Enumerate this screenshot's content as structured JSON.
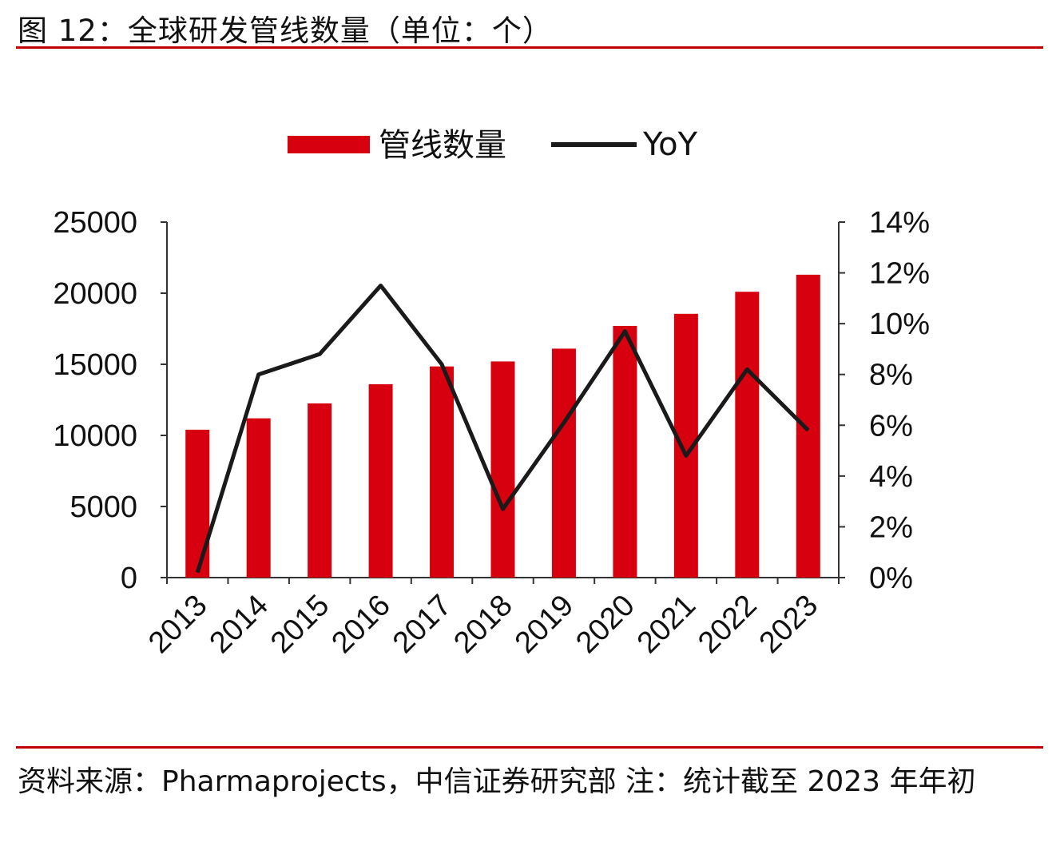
{
  "title": "图 12：全球研发管线数量（单位：个）",
  "source": "资料来源：Pharmaprojects，中信证券研究部 注：统计截至 2023 年年初",
  "colors": {
    "bar": "#d7000f",
    "line": "#1a1a1a",
    "rule": "#c00000"
  },
  "chart_data": {
    "type": "bar+line",
    "categories": [
      "2013",
      "2014",
      "2015",
      "2016",
      "2017",
      "2018",
      "2019",
      "2020",
      "2021",
      "2022",
      "2023"
    ],
    "series": [
      {
        "name": "管线数量",
        "type": "bar",
        "axis": "left",
        "values": [
          10400,
          11200,
          12250,
          13600,
          14850,
          15200,
          16100,
          17700,
          18550,
          20100,
          21300
        ]
      },
      {
        "name": "YoY",
        "type": "line",
        "axis": "right",
        "values": [
          0.2,
          8.0,
          8.8,
          11.5,
          8.4,
          2.7,
          6.1,
          9.7,
          4.8,
          8.2,
          5.8
        ]
      }
    ],
    "y_left": {
      "ticks": [
        "0",
        "5000",
        "10000",
        "15000",
        "20000",
        "25000"
      ],
      "range": [
        0,
        25000
      ]
    },
    "y_right": {
      "ticks": [
        "0%",
        "2%",
        "4%",
        "6%",
        "8%",
        "10%",
        "12%",
        "14%"
      ],
      "range": [
        0,
        14
      ]
    },
    "legend": "top-center",
    "grid": false
  }
}
